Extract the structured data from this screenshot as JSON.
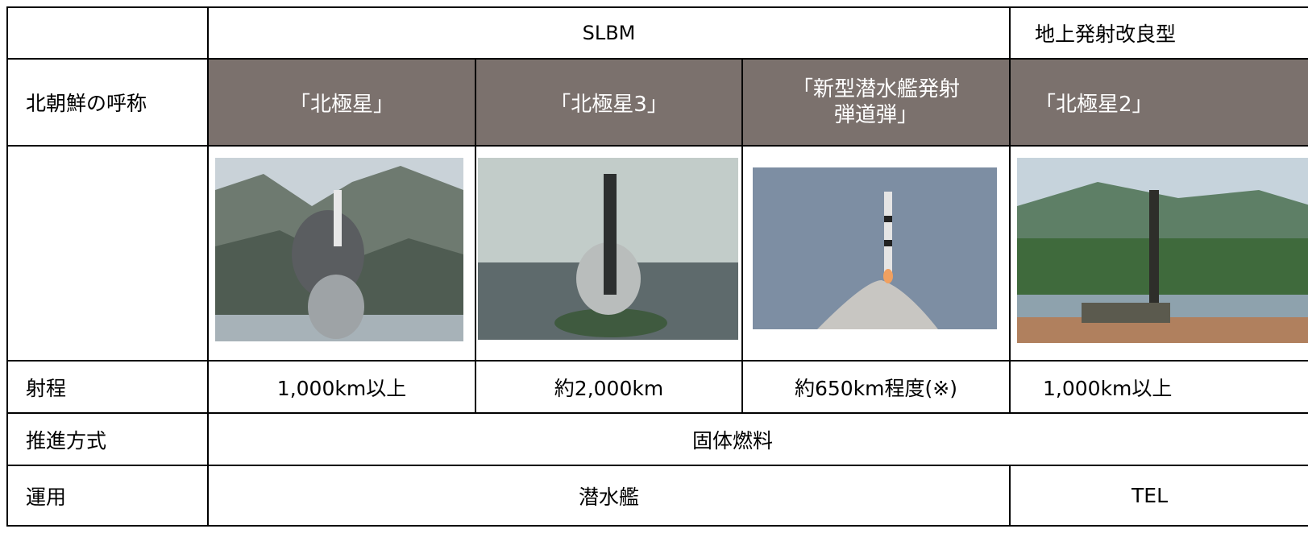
{
  "table": {
    "group_header": [
      "SLBM",
      "地上発射改良型"
    ],
    "name_row": {
      "label": "北朝鮮の呼称",
      "cells": [
        "「北極星」",
        "「北極星3」",
        [
          "「新型潜水艦発射",
          "弾道弾」"
        ],
        "「北極星2」"
      ]
    },
    "range_row": {
      "label": "射程",
      "cells": [
        "1,000km以上",
        "約2,000km",
        "約650km程度(※)",
        "1,000km以上"
      ]
    },
    "propulsion_row": {
      "label": "推進方式",
      "value": "固体燃料"
    },
    "operation_row": {
      "label": "運用",
      "cells": [
        "潜水艦",
        "TEL"
      ]
    }
  }
}
